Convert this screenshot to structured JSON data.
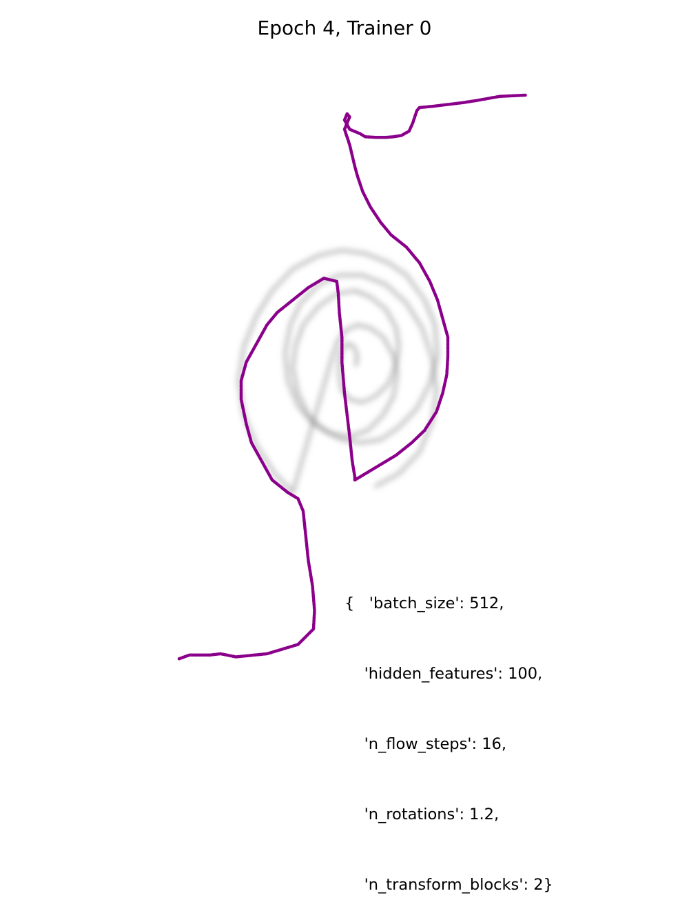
{
  "chart_data": {
    "type": "scatter",
    "title": "Epoch 4, Trainer 0",
    "xlabel": "",
    "ylabel": "",
    "axes_visible": false,
    "grid": false,
    "xlim": [
      -5,
      5
    ],
    "ylim": [
      -5,
      5
    ],
    "series": [
      {
        "role": "target-density",
        "color": "#808080",
        "points": [
          [
            0.22,
            -0.05
          ],
          [
            0.25,
            0.1
          ],
          [
            0.18,
            0.25
          ],
          [
            0.05,
            0.3
          ],
          [
            -0.05,
            0.2
          ],
          [
            -0.1,
            0.0
          ],
          [
            -0.1,
            -0.2
          ],
          [
            -0.05,
            -0.45
          ],
          [
            0.1,
            -0.6
          ],
          [
            0.35,
            -0.65
          ],
          [
            0.6,
            -0.55
          ],
          [
            0.85,
            -0.35
          ],
          [
            1.0,
            -0.05
          ],
          [
            1.05,
            0.25
          ],
          [
            1.0,
            0.55
          ],
          [
            0.8,
            0.85
          ],
          [
            0.5,
            1.05
          ],
          [
            0.2,
            1.15
          ],
          [
            -0.15,
            1.1
          ],
          [
            -0.5,
            0.9
          ],
          [
            -0.8,
            0.6
          ],
          [
            -0.95,
            0.25
          ],
          [
            -1.0,
            -0.1
          ],
          [
            -0.9,
            -0.5
          ],
          [
            -0.7,
            -0.85
          ],
          [
            -0.4,
            -1.1
          ],
          [
            -0.05,
            -1.25
          ],
          [
            0.3,
            -1.3
          ],
          [
            0.7,
            -1.25
          ],
          [
            1.05,
            -1.05
          ],
          [
            1.4,
            -0.75
          ],
          [
            1.65,
            -0.35
          ],
          [
            1.8,
            0.1
          ],
          [
            1.75,
            0.6
          ],
          [
            1.55,
            1.0
          ],
          [
            1.2,
            1.4
          ],
          [
            0.85,
            1.6
          ],
          [
            0.4,
            1.75
          ],
          [
            -0.05,
            1.8
          ],
          [
            -0.5,
            1.72
          ],
          [
            -1.0,
            1.5
          ],
          [
            -1.4,
            1.15
          ],
          [
            -1.7,
            0.75
          ],
          [
            -1.95,
            0.25
          ],
          [
            -2.05,
            -0.3
          ],
          [
            -1.95,
            -0.85
          ],
          [
            -1.7,
            -1.35
          ],
          [
            -1.35,
            -1.8
          ],
          [
            -1.0,
            -2.1
          ],
          [
            -0.25,
            0.05
          ],
          [
            -0.15,
            0.3
          ],
          [
            0.0,
            0.5
          ],
          [
            0.25,
            0.6
          ],
          [
            0.5,
            0.55
          ],
          [
            0.75,
            0.4
          ],
          [
            0.95,
            0.1
          ],
          [
            1.02,
            -0.2
          ],
          [
            0.95,
            -0.55
          ],
          [
            0.75,
            -0.85
          ],
          [
            0.45,
            -1.1
          ],
          [
            0.1,
            -1.2
          ],
          [
            -0.25,
            -1.15
          ],
          [
            -0.6,
            -1.0
          ],
          [
            -0.9,
            -0.7
          ],
          [
            -1.1,
            -0.3
          ],
          [
            -1.15,
            0.15
          ],
          [
            -1.05,
            0.6
          ],
          [
            -0.85,
            0.95
          ],
          [
            -0.5,
            1.25
          ],
          [
            -0.1,
            1.4
          ],
          [
            0.35,
            1.4
          ],
          [
            0.8,
            1.25
          ],
          [
            1.2,
            0.95
          ],
          [
            1.5,
            0.55
          ],
          [
            1.7,
            0.05
          ],
          [
            1.78,
            -0.45
          ],
          [
            1.7,
            -0.95
          ],
          [
            1.45,
            -1.45
          ],
          [
            1.05,
            -1.8
          ],
          [
            0.6,
            -2.0
          ]
        ]
      },
      {
        "role": "flow-samples",
        "color": "#8b008b",
        "points": [
          [
            3.5,
            4.3
          ],
          [
            3.0,
            4.28
          ],
          [
            2.6,
            4.22
          ],
          [
            2.3,
            4.18
          ],
          [
            2.0,
            4.15
          ],
          [
            1.7,
            4.12
          ],
          [
            1.45,
            4.1
          ],
          [
            1.4,
            4.05
          ],
          [
            1.32,
            3.85
          ],
          [
            1.25,
            3.72
          ],
          [
            1.1,
            3.65
          ],
          [
            0.95,
            3.63
          ],
          [
            0.8,
            3.62
          ],
          [
            0.6,
            3.62
          ],
          [
            0.4,
            3.63
          ],
          [
            0.3,
            3.68
          ],
          [
            0.1,
            3.75
          ],
          [
            0.0,
            3.9
          ],
          [
            0.05,
            4.0
          ],
          [
            0.1,
            3.95
          ],
          [
            0.0,
            3.75
          ],
          [
            0.1,
            3.5
          ],
          [
            0.2,
            3.15
          ],
          [
            0.25,
            3.0
          ],
          [
            0.35,
            2.75
          ],
          [
            0.5,
            2.5
          ],
          [
            0.7,
            2.25
          ],
          [
            0.9,
            2.05
          ],
          [
            1.2,
            1.85
          ],
          [
            1.45,
            1.6
          ],
          [
            1.65,
            1.3
          ],
          [
            1.8,
            1.0
          ],
          [
            1.9,
            0.7
          ],
          [
            2.0,
            0.4
          ],
          [
            2.0,
            0.1
          ],
          [
            1.98,
            -0.2
          ],
          [
            1.9,
            -0.5
          ],
          [
            1.78,
            -0.8
          ],
          [
            1.55,
            -1.1
          ],
          [
            1.3,
            -1.3
          ],
          [
            1.0,
            -1.5
          ],
          [
            0.7,
            -1.65
          ],
          [
            0.4,
            -1.8
          ],
          [
            0.3,
            -1.85
          ],
          [
            0.2,
            -1.9
          ],
          [
            0.2,
            -1.85
          ],
          [
            0.15,
            -1.6
          ],
          [
            0.1,
            -1.2
          ],
          [
            0.0,
            -0.5
          ],
          [
            -0.05,
            0.0
          ],
          [
            -0.05,
            0.4
          ],
          [
            -0.1,
            0.8
          ],
          [
            -0.12,
            1.1
          ],
          [
            -0.15,
            1.3
          ],
          [
            -0.4,
            1.35
          ],
          [
            -0.7,
            1.2
          ],
          [
            -1.0,
            1.0
          ],
          [
            -1.3,
            0.8
          ],
          [
            -1.5,
            0.6
          ],
          [
            -1.7,
            0.3
          ],
          [
            -1.9,
            0.0
          ],
          [
            -2.0,
            -0.3
          ],
          [
            -2.0,
            -0.6
          ],
          [
            -1.9,
            -1.0
          ],
          [
            -1.8,
            -1.3
          ],
          [
            -1.6,
            -1.6
          ],
          [
            -1.4,
            -1.9
          ],
          [
            -1.1,
            -2.1
          ],
          [
            -0.9,
            -2.2
          ],
          [
            -0.8,
            -2.4
          ],
          [
            -0.75,
            -2.8
          ],
          [
            -0.7,
            -3.2
          ],
          [
            -0.62,
            -3.6
          ],
          [
            -0.58,
            -4.0
          ],
          [
            -0.6,
            -4.3
          ],
          [
            -0.9,
            -4.55
          ],
          [
            -1.5,
            -4.7
          ],
          [
            -2.1,
            -4.75
          ],
          [
            -2.4,
            -4.7
          ],
          [
            -2.6,
            -4.72
          ],
          [
            -3.0,
            -4.72
          ],
          [
            -3.2,
            -4.78
          ]
        ]
      }
    ],
    "annotation_lines": [
      "{   'batch_size': 512,",
      "    'hidden_features': 100,",
      "    'n_flow_steps': 16,",
      "    'n_rotations': 1.2,",
      "    'n_transform_blocks': 2}"
    ]
  }
}
